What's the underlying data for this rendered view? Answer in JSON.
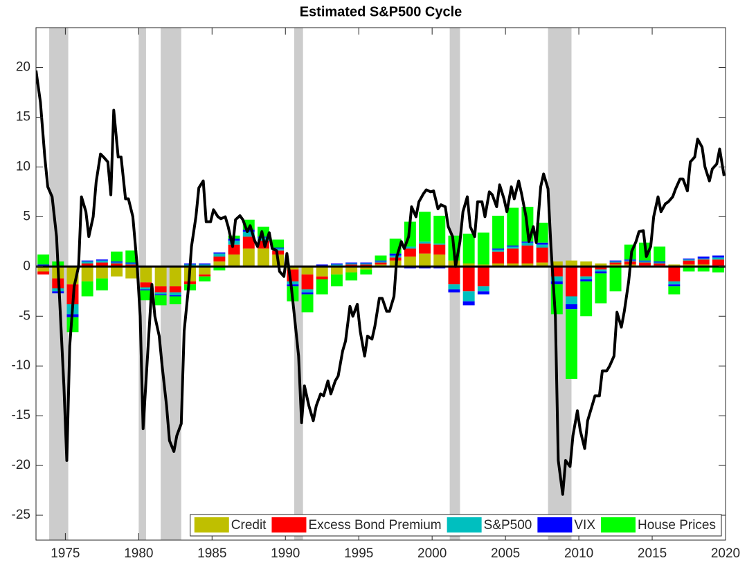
{
  "chart_data": {
    "type": "bar",
    "title": "Estimated S&P500 Cycle",
    "stacked": true,
    "x": [
      1973,
      1974,
      1975,
      1976,
      1977,
      1978,
      1979,
      1980,
      1981,
      1982,
      1983,
      1984,
      1985,
      1986,
      1987,
      1988,
      1989,
      1990,
      1991,
      1992,
      1993,
      1994,
      1995,
      1996,
      1997,
      1998,
      1999,
      2000,
      2001,
      2002,
      2003,
      2004,
      2005,
      2006,
      2007,
      2008,
      2009,
      2010,
      2011,
      2012,
      2013,
      2014,
      2015,
      2016,
      2017,
      2018,
      2019
    ],
    "series": [
      {
        "name": "Credit",
        "color": "#bfbf00",
        "values": [
          -0.5,
          -1.2,
          -1.8,
          -1.5,
          -1.2,
          -1.0,
          -1.2,
          -1.6,
          -2.0,
          -2.0,
          -1.5,
          -0.8,
          0.5,
          1.2,
          1.8,
          1.8,
          1.2,
          -0.3,
          -0.8,
          -1.0,
          -0.8,
          -0.6,
          -0.3,
          0.2,
          0.6,
          1.0,
          1.3,
          1.2,
          0.6,
          0.3,
          0.2,
          0.3,
          0.3,
          0.3,
          0.4,
          0.5,
          0.6,
          0.5,
          0.3,
          0.2,
          0.2,
          0.1,
          0.1,
          0.2,
          0.2,
          0.2,
          0.1
        ]
      },
      {
        "name": "Excess Bond Premium",
        "color": "#ff0000",
        "values": [
          -0.3,
          -1.0,
          -2.0,
          0.3,
          0.4,
          0.3,
          0.2,
          -0.5,
          -0.6,
          -0.6,
          -0.3,
          -0.2,
          0.5,
          1.0,
          1.2,
          0.8,
          0.4,
          -1.2,
          -1.5,
          -0.3,
          0.1,
          0.2,
          0.2,
          0.2,
          0.3,
          0.8,
          1.0,
          1.0,
          -1.8,
          -2.5,
          -2.0,
          1.2,
          1.5,
          1.8,
          1.5,
          -1.0,
          -3.0,
          -1.0,
          -0.3,
          0.2,
          0.3,
          0.3,
          0.2,
          -1.5,
          0.4,
          0.5,
          0.6
        ]
      },
      {
        "name": "S&P500",
        "color": "#00bfbf",
        "values": [
          0.1,
          -0.3,
          -1.0,
          0.2,
          0.2,
          0.1,
          0.1,
          -0.2,
          -0.2,
          -0.3,
          0.2,
          0.2,
          0.3,
          0.4,
          0.5,
          0.3,
          0.2,
          -0.3,
          -0.3,
          0.1,
          0.1,
          0.1,
          0.1,
          0.1,
          0.2,
          0.2,
          0.2,
          0.1,
          -0.5,
          -1.0,
          -0.5,
          0.2,
          0.2,
          0.3,
          0.3,
          -0.5,
          -0.8,
          -0.3,
          -0.2,
          0.1,
          0.1,
          0.1,
          0.1,
          -0.3,
          0.1,
          0.1,
          0.2
        ]
      },
      {
        "name": "VIX",
        "color": "#0000ff",
        "values": [
          0.1,
          -0.2,
          -0.3,
          0.1,
          0.1,
          0.1,
          0.1,
          -0.1,
          -0.1,
          -0.1,
          0.1,
          0.1,
          0.1,
          0.2,
          0.2,
          0.1,
          0.1,
          -0.2,
          -0.2,
          0.1,
          0.1,
          0.1,
          0.1,
          0.1,
          0.2,
          -0.2,
          -0.2,
          -0.2,
          -0.3,
          -0.4,
          -0.3,
          0.1,
          0.1,
          0.1,
          0.2,
          -0.3,
          -0.5,
          -0.2,
          -0.2,
          0.1,
          0.1,
          0.1,
          0.1,
          -0.2,
          0.1,
          0.2,
          0.2
        ]
      },
      {
        "name": "House Prices",
        "color": "#00ff00",
        "values": [
          1.0,
          0.5,
          -1.5,
          -1.5,
          -1.2,
          1.0,
          1.2,
          -1.0,
          -1.0,
          -0.8,
          -0.6,
          -0.5,
          -0.4,
          0.3,
          1.0,
          1.0,
          0.8,
          -1.5,
          -1.8,
          -1.5,
          -1.2,
          -0.8,
          -0.5,
          0.5,
          1.5,
          2.5,
          3.0,
          2.8,
          2.5,
          3.0,
          3.2,
          3.3,
          3.8,
          3.5,
          2.0,
          -3.0,
          -7.0,
          -3.5,
          -3.0,
          -2.5,
          1.5,
          1.8,
          1.5,
          -0.8,
          -0.5,
          -0.5,
          -0.6
        ]
      }
    ],
    "line": {
      "color": "#000000",
      "x": [
        1973.0,
        1973.3,
        1973.6,
        1973.8,
        1974.1,
        1974.4,
        1974.6,
        1974.9,
        1975.1,
        1975.3,
        1975.6,
        1975.9,
        1976.1,
        1976.4,
        1976.6,
        1976.9,
        1977.1,
        1977.4,
        1977.6,
        1977.9,
        1978.1,
        1978.3,
        1978.6,
        1978.8,
        1979.1,
        1979.3,
        1979.6,
        1979.9,
        1980.1,
        1980.3,
        1980.6,
        1980.9,
        1981.1,
        1981.4,
        1981.6,
        1981.9,
        1982.1,
        1982.4,
        1982.6,
        1982.9,
        1983.1,
        1983.4,
        1983.6,
        1983.9,
        1984.1,
        1984.4,
        1984.6,
        1984.9,
        1985.1,
        1985.4,
        1985.6,
        1985.9,
        1986.1,
        1986.4,
        1986.6,
        1986.9,
        1987.1,
        1987.4,
        1987.6,
        1987.9,
        1988.1,
        1988.4,
        1988.6,
        1988.9,
        1989.1,
        1989.4,
        1989.6,
        1989.9,
        1990.1,
        1990.4,
        1990.6,
        1990.9,
        1991.1,
        1991.3,
        1991.6,
        1991.9,
        1992.1,
        1992.4,
        1992.6,
        1992.9,
        1993.1,
        1993.4,
        1993.6,
        1993.9,
        1994.1,
        1994.4,
        1994.6,
        1994.9,
        1995.1,
        1995.4,
        1995.6,
        1995.9,
        1996.1,
        1996.4,
        1996.6,
        1996.9,
        1997.1,
        1997.4,
        1997.6,
        1997.9,
        1998.1,
        1998.4,
        1998.6,
        1998.9,
        1999.1,
        1999.4,
        1999.6,
        1999.9,
        2000.1,
        2000.4,
        2000.6,
        2000.9,
        2001.1,
        2001.4,
        2001.6,
        2001.9,
        2002.1,
        2002.4,
        2002.6,
        2002.9,
        2003.1,
        2003.4,
        2003.6,
        2003.9,
        2004.1,
        2004.4,
        2004.6,
        2004.9,
        2005.1,
        2005.4,
        2005.6,
        2005.9,
        2006.1,
        2006.4,
        2006.6,
        2006.9,
        2007.1,
        2007.4,
        2007.6,
        2007.9,
        2008.1,
        2008.4,
        2008.6,
        2008.9,
        2009.1,
        2009.4,
        2009.6,
        2009.9,
        2010.1,
        2010.4,
        2010.6,
        2010.9,
        2011.1,
        2011.4,
        2011.6,
        2011.9,
        2012.1,
        2012.4,
        2012.6,
        2012.9,
        2013.1,
        2013.4,
        2013.6,
        2013.9,
        2014.1,
        2014.4,
        2014.6,
        2014.9,
        2015.1,
        2015.4,
        2015.6,
        2015.9,
        2016.1,
        2016.4,
        2016.6,
        2016.9,
        2017.1,
        2017.4,
        2017.6,
        2017.9,
        2018.1,
        2018.4,
        2018.6,
        2018.9,
        2019.1,
        2019.4,
        2019.6,
        2019.9
      ],
      "values": [
        19.7,
        16.5,
        11,
        8,
        7,
        3,
        -3,
        -12,
        -19.5,
        -8,
        -2,
        0,
        7,
        5.5,
        3,
        5,
        8.5,
        11.3,
        11,
        10.5,
        7.2,
        15.7,
        11,
        11,
        6.8,
        6.8,
        5,
        0,
        -5,
        -16.3,
        -9,
        -1.8,
        -5,
        -7,
        -10,
        -14,
        -17.5,
        -18.6,
        -17,
        -15.8,
        -6.5,
        -2,
        2,
        5,
        7.9,
        8.6,
        4.5,
        4.5,
        5.7,
        5,
        4.8,
        5,
        4,
        2,
        4.7,
        5.1,
        4.7,
        3.5,
        4.1,
        2.6,
        2,
        3.5,
        2,
        3.4,
        1.8,
        1.6,
        -0.5,
        -1,
        1.3,
        -2,
        -4.8,
        -9,
        -15.7,
        -12,
        -14,
        -15.5,
        -14,
        -12.8,
        -13,
        -11.5,
        -12.8,
        -11.5,
        -11,
        -8.5,
        -7.5,
        -4,
        -5,
        -3.8,
        -6.5,
        -9,
        -7,
        -7.3,
        -6,
        -3.2,
        -3.2,
        -4.5,
        -4.5,
        -3,
        1,
        2.5,
        1.8,
        3,
        6,
        5,
        6.5,
        7.3,
        7.7,
        7.5,
        7.6,
        5.8,
        6.2,
        6,
        4,
        3,
        0,
        2.5,
        5.5,
        7,
        4,
        3,
        6.5,
        6.5,
        5,
        7.5,
        7.2,
        6,
        8.2,
        6.8,
        5.5,
        8,
        6.8,
        8.6,
        7.3,
        5,
        2.5,
        4,
        2.4,
        8,
        9.3,
        7.8,
        2,
        -5,
        -19.5,
        -22.9,
        -19.5,
        -20.1,
        -17,
        -14.5,
        -16.5,
        -18.3,
        -15.5,
        -14,
        -13,
        -13,
        -10.5,
        -10.5,
        -10,
        -9,
        -4.6,
        -6.1,
        -4.5,
        -1.5,
        1.5,
        2.5,
        3.5,
        3.6,
        1,
        2,
        5,
        7,
        5.5,
        6.3,
        6.5,
        7,
        7.8,
        8.8,
        8.8,
        7.6,
        10.5,
        11,
        12.8,
        12,
        10,
        8.6,
        9.8,
        10.3,
        11.8,
        9.1
      ]
    },
    "shaded_regions": [
      [
        1973.9,
        1975.2
      ],
      [
        1980.0,
        1980.5
      ],
      [
        1981.5,
        1982.9
      ],
      [
        1990.6,
        1991.2
      ],
      [
        2001.2,
        2001.9
      ],
      [
        2007.9,
        2009.5
      ]
    ],
    "shade_color": "#cccccc",
    "xlim": [
      1973,
      2020
    ],
    "xticks": [
      1975,
      1980,
      1985,
      1990,
      1995,
      2000,
      2005,
      2010,
      2015,
      2020
    ],
    "ylim": [
      -27.5,
      24
    ],
    "yticks": [
      -25,
      -20,
      -15,
      -10,
      -5,
      0,
      5,
      10,
      15,
      20
    ],
    "legend": "lower right"
  }
}
